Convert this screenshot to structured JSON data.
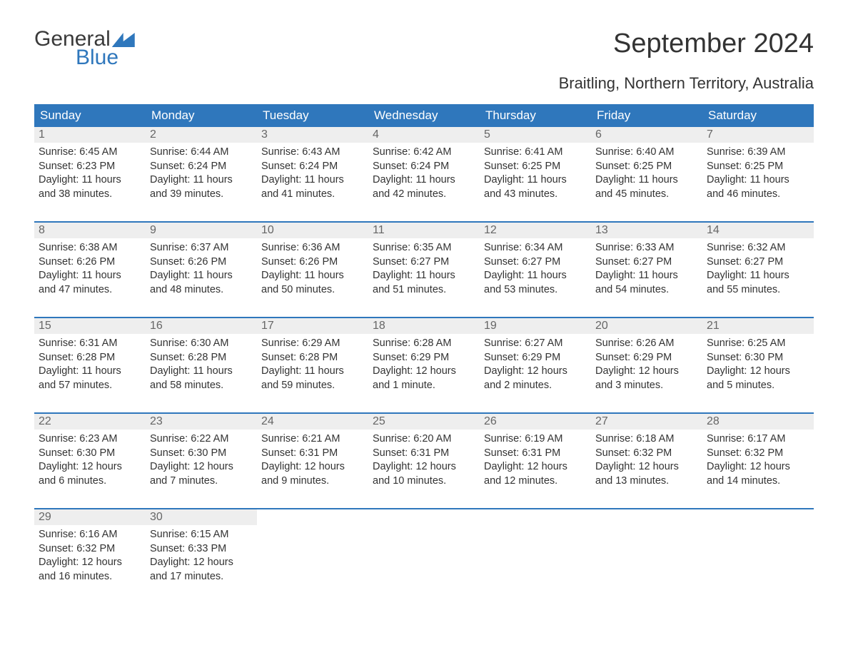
{
  "logo": {
    "general": "General",
    "blue": "Blue"
  },
  "title": "September 2024",
  "subtitle": "Braitling, Northern Territory, Australia",
  "colors": {
    "header_bg": "#2f77bc",
    "header_text": "#ffffff",
    "daynum_bg": "#eeeeee",
    "daynum_text": "#666666",
    "body_text": "#333333",
    "row_border": "#2f77bc",
    "page_bg": "#ffffff",
    "logo_general": "#3a3a3a",
    "logo_blue": "#2f77bc"
  },
  "typography": {
    "title_fontsize": 38,
    "subtitle_fontsize": 22,
    "dow_fontsize": 17,
    "daynum_fontsize": 16,
    "body_fontsize": 14.5,
    "font_family": "Arial"
  },
  "days_of_week": [
    "Sunday",
    "Monday",
    "Tuesday",
    "Wednesday",
    "Thursday",
    "Friday",
    "Saturday"
  ],
  "weeks": [
    [
      {
        "num": "1",
        "sunrise": "Sunrise: 6:45 AM",
        "sunset": "Sunset: 6:23 PM",
        "dl1": "Daylight: 11 hours",
        "dl2": "and 38 minutes."
      },
      {
        "num": "2",
        "sunrise": "Sunrise: 6:44 AM",
        "sunset": "Sunset: 6:24 PM",
        "dl1": "Daylight: 11 hours",
        "dl2": "and 39 minutes."
      },
      {
        "num": "3",
        "sunrise": "Sunrise: 6:43 AM",
        "sunset": "Sunset: 6:24 PM",
        "dl1": "Daylight: 11 hours",
        "dl2": "and 41 minutes."
      },
      {
        "num": "4",
        "sunrise": "Sunrise: 6:42 AM",
        "sunset": "Sunset: 6:24 PM",
        "dl1": "Daylight: 11 hours",
        "dl2": "and 42 minutes."
      },
      {
        "num": "5",
        "sunrise": "Sunrise: 6:41 AM",
        "sunset": "Sunset: 6:25 PM",
        "dl1": "Daylight: 11 hours",
        "dl2": "and 43 minutes."
      },
      {
        "num": "6",
        "sunrise": "Sunrise: 6:40 AM",
        "sunset": "Sunset: 6:25 PM",
        "dl1": "Daylight: 11 hours",
        "dl2": "and 45 minutes."
      },
      {
        "num": "7",
        "sunrise": "Sunrise: 6:39 AM",
        "sunset": "Sunset: 6:25 PM",
        "dl1": "Daylight: 11 hours",
        "dl2": "and 46 minutes."
      }
    ],
    [
      {
        "num": "8",
        "sunrise": "Sunrise: 6:38 AM",
        "sunset": "Sunset: 6:26 PM",
        "dl1": "Daylight: 11 hours",
        "dl2": "and 47 minutes."
      },
      {
        "num": "9",
        "sunrise": "Sunrise: 6:37 AM",
        "sunset": "Sunset: 6:26 PM",
        "dl1": "Daylight: 11 hours",
        "dl2": "and 48 minutes."
      },
      {
        "num": "10",
        "sunrise": "Sunrise: 6:36 AM",
        "sunset": "Sunset: 6:26 PM",
        "dl1": "Daylight: 11 hours",
        "dl2": "and 50 minutes."
      },
      {
        "num": "11",
        "sunrise": "Sunrise: 6:35 AM",
        "sunset": "Sunset: 6:27 PM",
        "dl1": "Daylight: 11 hours",
        "dl2": "and 51 minutes."
      },
      {
        "num": "12",
        "sunrise": "Sunrise: 6:34 AM",
        "sunset": "Sunset: 6:27 PM",
        "dl1": "Daylight: 11 hours",
        "dl2": "and 53 minutes."
      },
      {
        "num": "13",
        "sunrise": "Sunrise: 6:33 AM",
        "sunset": "Sunset: 6:27 PM",
        "dl1": "Daylight: 11 hours",
        "dl2": "and 54 minutes."
      },
      {
        "num": "14",
        "sunrise": "Sunrise: 6:32 AM",
        "sunset": "Sunset: 6:27 PM",
        "dl1": "Daylight: 11 hours",
        "dl2": "and 55 minutes."
      }
    ],
    [
      {
        "num": "15",
        "sunrise": "Sunrise: 6:31 AM",
        "sunset": "Sunset: 6:28 PM",
        "dl1": "Daylight: 11 hours",
        "dl2": "and 57 minutes."
      },
      {
        "num": "16",
        "sunrise": "Sunrise: 6:30 AM",
        "sunset": "Sunset: 6:28 PM",
        "dl1": "Daylight: 11 hours",
        "dl2": "and 58 minutes."
      },
      {
        "num": "17",
        "sunrise": "Sunrise: 6:29 AM",
        "sunset": "Sunset: 6:28 PM",
        "dl1": "Daylight: 11 hours",
        "dl2": "and 59 minutes."
      },
      {
        "num": "18",
        "sunrise": "Sunrise: 6:28 AM",
        "sunset": "Sunset: 6:29 PM",
        "dl1": "Daylight: 12 hours",
        "dl2": "and 1 minute."
      },
      {
        "num": "19",
        "sunrise": "Sunrise: 6:27 AM",
        "sunset": "Sunset: 6:29 PM",
        "dl1": "Daylight: 12 hours",
        "dl2": "and 2 minutes."
      },
      {
        "num": "20",
        "sunrise": "Sunrise: 6:26 AM",
        "sunset": "Sunset: 6:29 PM",
        "dl1": "Daylight: 12 hours",
        "dl2": "and 3 minutes."
      },
      {
        "num": "21",
        "sunrise": "Sunrise: 6:25 AM",
        "sunset": "Sunset: 6:30 PM",
        "dl1": "Daylight: 12 hours",
        "dl2": "and 5 minutes."
      }
    ],
    [
      {
        "num": "22",
        "sunrise": "Sunrise: 6:23 AM",
        "sunset": "Sunset: 6:30 PM",
        "dl1": "Daylight: 12 hours",
        "dl2": "and 6 minutes."
      },
      {
        "num": "23",
        "sunrise": "Sunrise: 6:22 AM",
        "sunset": "Sunset: 6:30 PM",
        "dl1": "Daylight: 12 hours",
        "dl2": "and 7 minutes."
      },
      {
        "num": "24",
        "sunrise": "Sunrise: 6:21 AM",
        "sunset": "Sunset: 6:31 PM",
        "dl1": "Daylight: 12 hours",
        "dl2": "and 9 minutes."
      },
      {
        "num": "25",
        "sunrise": "Sunrise: 6:20 AM",
        "sunset": "Sunset: 6:31 PM",
        "dl1": "Daylight: 12 hours",
        "dl2": "and 10 minutes."
      },
      {
        "num": "26",
        "sunrise": "Sunrise: 6:19 AM",
        "sunset": "Sunset: 6:31 PM",
        "dl1": "Daylight: 12 hours",
        "dl2": "and 12 minutes."
      },
      {
        "num": "27",
        "sunrise": "Sunrise: 6:18 AM",
        "sunset": "Sunset: 6:32 PM",
        "dl1": "Daylight: 12 hours",
        "dl2": "and 13 minutes."
      },
      {
        "num": "28",
        "sunrise": "Sunrise: 6:17 AM",
        "sunset": "Sunset: 6:32 PM",
        "dl1": "Daylight: 12 hours",
        "dl2": "and 14 minutes."
      }
    ],
    [
      {
        "num": "29",
        "sunrise": "Sunrise: 6:16 AM",
        "sunset": "Sunset: 6:32 PM",
        "dl1": "Daylight: 12 hours",
        "dl2": "and 16 minutes."
      },
      {
        "num": "30",
        "sunrise": "Sunrise: 6:15 AM",
        "sunset": "Sunset: 6:33 PM",
        "dl1": "Daylight: 12 hours",
        "dl2": "and 17 minutes."
      },
      null,
      null,
      null,
      null,
      null
    ]
  ]
}
